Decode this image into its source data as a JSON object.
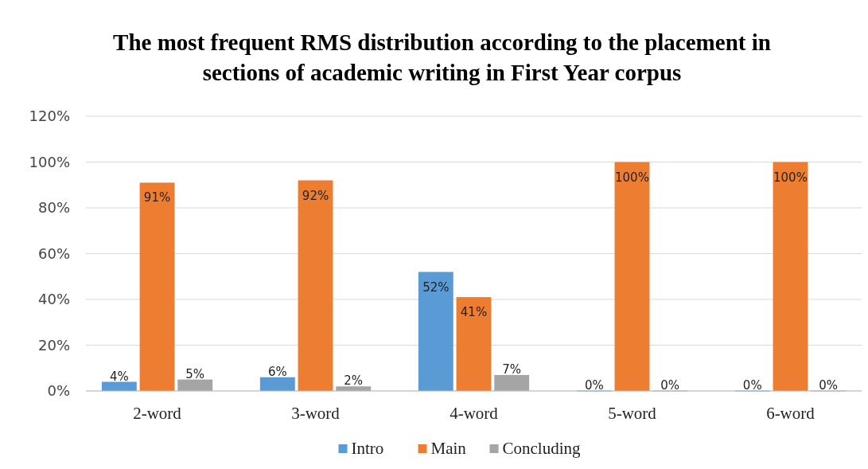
{
  "chart_data": {
    "type": "bar",
    "title": "The most frequent RMS distribution according to the placement in sections of academic writing in First Year corpus",
    "categories": [
      "2-word",
      "3-word",
      "4-word",
      "5-word",
      "6-word"
    ],
    "series": [
      {
        "name": "Intro",
        "color": "#5b9bd5",
        "values": [
          4,
          6,
          52,
          0,
          0
        ],
        "value_labels": [
          "4%",
          "6%",
          "52%",
          "0%",
          "0%"
        ]
      },
      {
        "name": "Main",
        "color": "#ed7d31",
        "values": [
          91,
          92,
          41,
          100,
          100
        ],
        "value_labels": [
          "91%",
          "92%",
          "41%",
          "100%",
          "100%"
        ]
      },
      {
        "name": "Concluding",
        "color": "#a5a5a5",
        "values": [
          5,
          2,
          7,
          0,
          0
        ],
        "value_labels": [
          "5%",
          "2%",
          "7%",
          "0%",
          "0%"
        ]
      }
    ],
    "ylim": [
      0,
      120
    ],
    "yticks": [
      {
        "value": 0,
        "label": "0%"
      },
      {
        "value": 20,
        "label": "20%"
      },
      {
        "value": 40,
        "label": "40%"
      },
      {
        "value": 60,
        "label": "60%"
      },
      {
        "value": 80,
        "label": "80%"
      },
      {
        "value": 100,
        "label": "100%"
      },
      {
        "value": 120,
        "label": "120%"
      }
    ],
    "grid": "y",
    "legend": "bottom"
  }
}
